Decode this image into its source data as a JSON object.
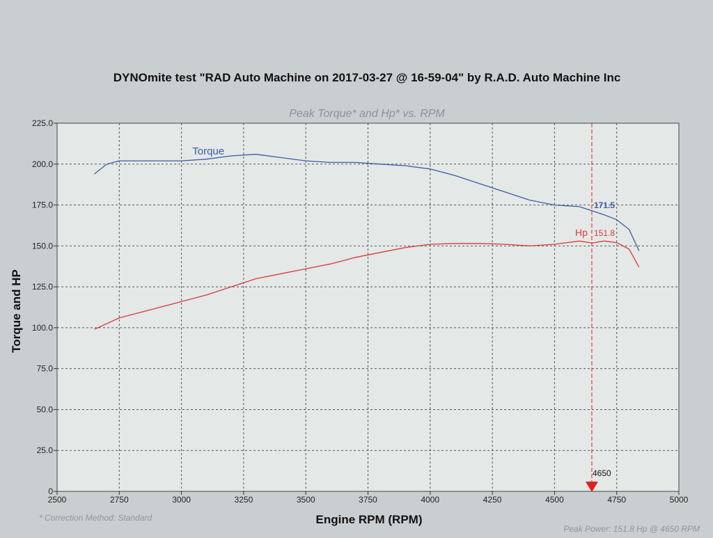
{
  "header": {
    "title": "DYNOmite test \"RAD Auto Machine on 2017-03-27 @ 16-59-04\" by R.A.D. Auto Machine Inc"
  },
  "footer": {
    "correction": "* Correction Method: Standard",
    "peak_power": "Peak Power: 151.8 Hp @ 4650 RPM"
  },
  "colors": {
    "torque": "#3a5ca8",
    "hp": "#d83a3a",
    "grid": "#555555",
    "plot_bg": "#e4e8e6",
    "marker": "#e02020"
  },
  "chart_data": {
    "type": "line",
    "title": "Peak Torque* and Hp* vs. RPM",
    "xlabel": "Engine RPM (RPM)",
    "ylabel": "Torque and HP",
    "xlim": [
      2500,
      5000
    ],
    "ylim": [
      0,
      225
    ],
    "x_ticks": [
      "2500",
      "2750",
      "3000",
      "3250",
      "3500",
      "3750",
      "4000",
      "4250",
      "4500",
      "4750",
      "5000"
    ],
    "y_ticks": [
      "0",
      "25.0",
      "50.0",
      "75.0",
      "100.0",
      "125.0",
      "150.0",
      "175.0",
      "200.0",
      "225.0"
    ],
    "grid": true,
    "series": [
      {
        "name": "Torque",
        "x": [
          2650,
          2700,
          2750,
          2850,
          3000,
          3100,
          3200,
          3300,
          3400,
          3500,
          3600,
          3700,
          3800,
          3900,
          4000,
          4100,
          4200,
          4300,
          4400,
          4500,
          4600,
          4650,
          4700,
          4750,
          4800,
          4840
        ],
        "y": [
          194,
          200,
          202,
          202,
          202,
          203,
          205,
          206,
          204,
          202,
          201,
          201,
          200,
          199,
          197,
          193,
          188,
          183,
          178,
          175,
          174,
          171.5,
          169,
          166,
          160,
          147
        ]
      },
      {
        "name": "Hp",
        "x": [
          2650,
          2750,
          2900,
          3000,
          3100,
          3200,
          3300,
          3400,
          3500,
          3600,
          3700,
          3800,
          3900,
          4000,
          4100,
          4200,
          4300,
          4400,
          4500,
          4600,
          4650,
          4700,
          4750,
          4800,
          4840
        ],
        "y": [
          99,
          106,
          112,
          116,
          120,
          125,
          130,
          133,
          136,
          139,
          143,
          146,
          149,
          151,
          151.5,
          151.5,
          151,
          150,
          151,
          153,
          151.8,
          153,
          152,
          148,
          137
        ]
      }
    ],
    "annotations": {
      "torque_value": "171.5",
      "hp_label": "Hp",
      "hp_value": "151.8",
      "peak_rpm": "4650",
      "peak_rpm_value": 4650
    }
  }
}
